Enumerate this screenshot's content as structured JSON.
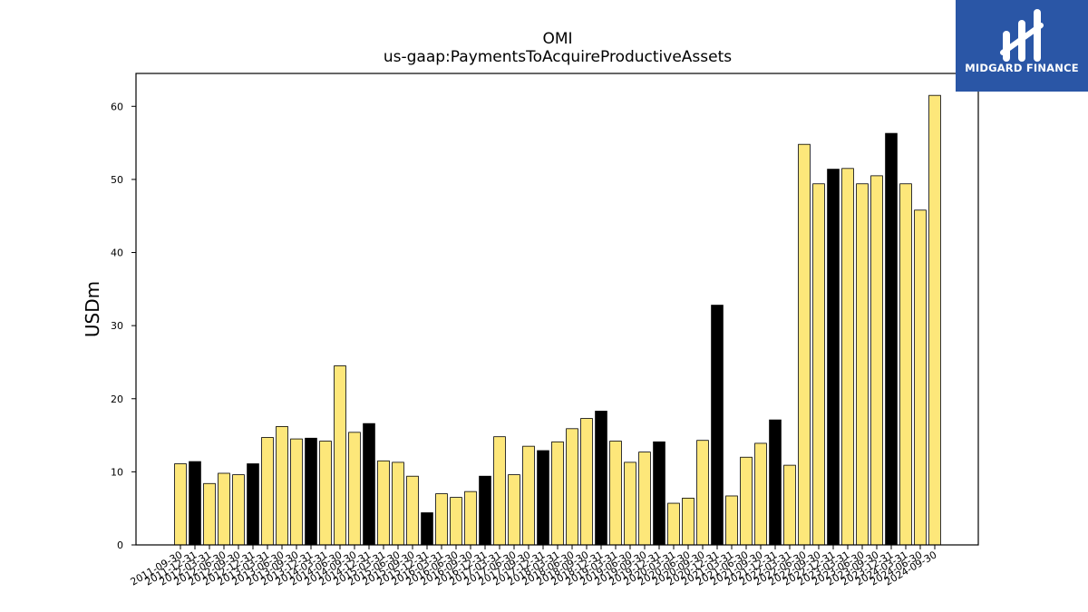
{
  "colors": {
    "normal": "#fde77a",
    "highlight": "#000000",
    "edge": "#000000",
    "logo_bg": "#2a56a6"
  },
  "logo": {
    "text": "MIDGARD FINANCE",
    "icon": "midgard-logo-icon"
  },
  "chart_data": {
    "type": "bar",
    "title": "OMI",
    "subtitle": "us-gaap:PaymentsToAcquireProductiveAssets",
    "xlabel": "",
    "ylabel": "USDm",
    "ylim": [
      0,
      64.5
    ],
    "yticks": [
      0,
      10,
      20,
      30,
      40,
      50,
      60
    ],
    "grid": false,
    "categories": [
      "2011-09-30",
      "2011-12-31",
      "2012-03-31",
      "2012-06-30",
      "2012-09-30",
      "2012-12-31",
      "2013-03-31",
      "2013-06-30",
      "2013-09-30",
      "2013-12-31",
      "2014-03-31",
      "2014-06-30",
      "2014-09-30",
      "2014-12-31",
      "2015-03-31",
      "2015-06-30",
      "2015-09-30",
      "2015-12-31",
      "2016-03-31",
      "2016-06-30",
      "2016-09-30",
      "2016-12-31",
      "2017-03-31",
      "2017-06-30",
      "2017-09-30",
      "2017-12-31",
      "2018-03-31",
      "2018-06-30",
      "2018-09-30",
      "2018-12-31",
      "2019-03-31",
      "2019-06-30",
      "2019-09-30",
      "2019-12-31",
      "2020-03-31",
      "2020-06-30",
      "2020-09-30",
      "2020-12-31",
      "2021-03-31",
      "2021-06-30",
      "2021-09-30",
      "2021-12-31",
      "2022-03-31",
      "2022-06-30",
      "2022-09-30",
      "2022-12-31",
      "2023-03-31",
      "2023-06-30",
      "2023-09-30",
      "2023-12-31",
      "2024-03-31",
      "2024-06-30",
      "2024-09-30"
    ],
    "values": [
      11.1,
      11.4,
      8.4,
      9.8,
      9.6,
      11.1,
      14.7,
      16.2,
      14.5,
      14.6,
      14.2,
      24.5,
      15.4,
      16.6,
      11.5,
      11.3,
      9.4,
      4.4,
      7.0,
      6.5,
      7.3,
      9.4,
      14.8,
      9.6,
      13.5,
      12.9,
      14.1,
      15.9,
      17.3,
      18.3,
      14.2,
      11.3,
      12.7,
      14.1,
      5.7,
      6.4,
      14.3,
      32.8,
      6.7,
      12.0,
      13.9,
      17.1,
      10.9,
      54.8,
      49.4,
      51.4,
      51.5,
      49.4,
      50.5,
      56.3,
      49.4,
      45.8,
      61.5
    ],
    "highlighted": [
      "2011-12-31",
      "2012-12-31",
      "2013-12-31",
      "2014-12-31",
      "2015-12-31",
      "2016-12-31",
      "2017-12-31",
      "2018-12-31",
      "2019-12-31",
      "2020-12-31",
      "2021-12-31",
      "2022-12-31",
      "2023-12-31"
    ]
  }
}
